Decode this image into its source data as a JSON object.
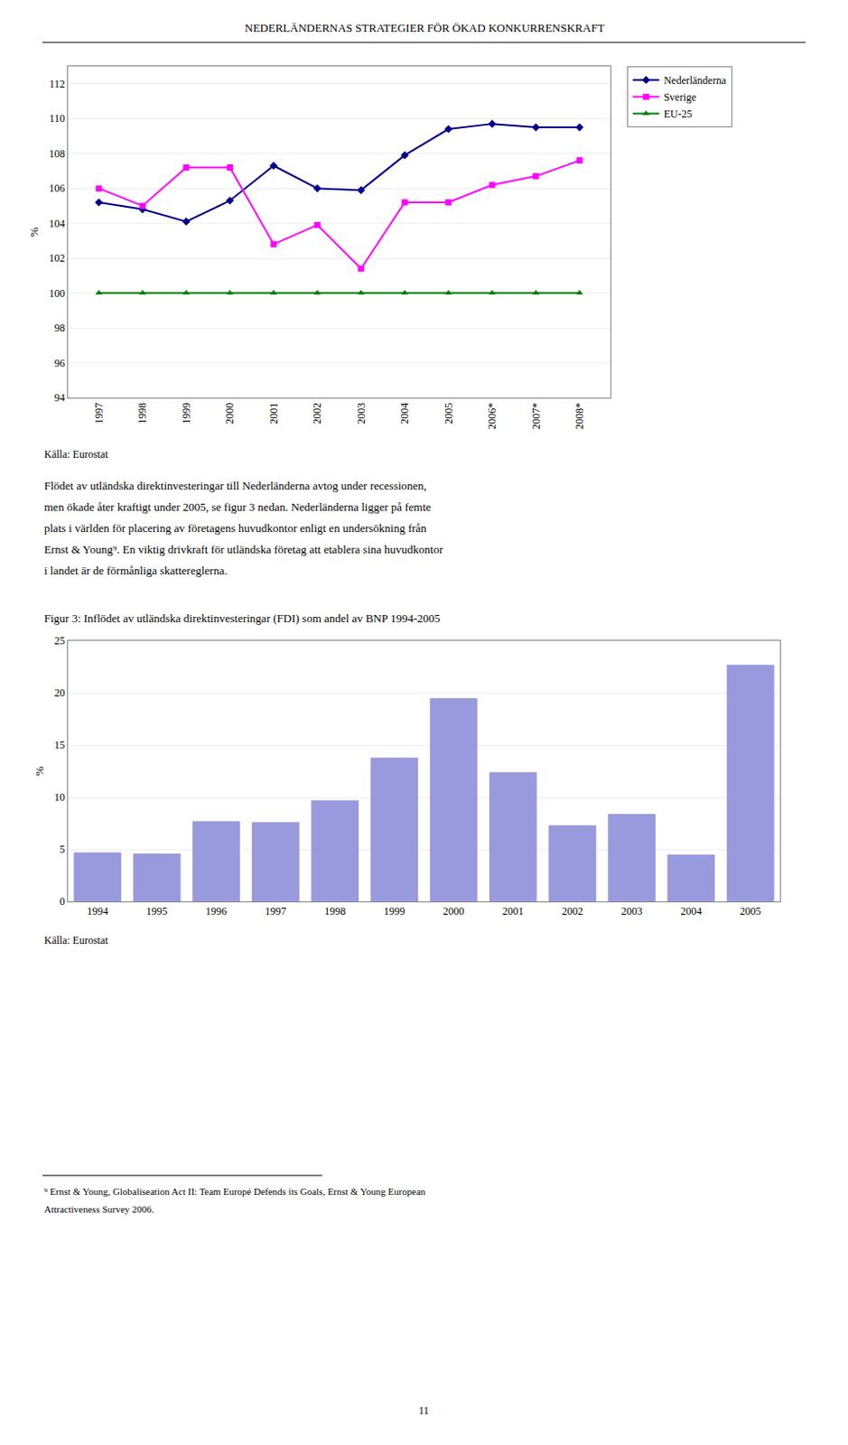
{
  "title": "NEDERLÄNDERNAS STRATEGIER FÖR ÖKAD KONKURRENSKRAFT",
  "chart_data": [
    {
      "type": "line",
      "categories": [
        "1997",
        "1998",
        "1999",
        "2000",
        "2001",
        "2002",
        "2003",
        "2004",
        "2005",
        "2006*",
        "2007*",
        "2008*"
      ],
      "series": [
        {
          "name": "Nederländerna",
          "color": "#00008B",
          "marker": "diamond",
          "values": [
            105.2,
            104.8,
            104.1,
            105.3,
            107.3,
            106.0,
            105.9,
            107.9,
            109.4,
            109.7,
            109.5,
            109.5
          ]
        },
        {
          "name": "Sverige",
          "color": "#FF00FF",
          "marker": "square",
          "values": [
            106.0,
            105.0,
            107.2,
            107.2,
            102.8,
            103.9,
            101.4,
            105.2,
            105.2,
            106.2,
            106.7,
            107.6
          ]
        },
        {
          "name": "EU-25",
          "color": "#008000",
          "marker": "triangle-up",
          "values": [
            100.0,
            100.0,
            100.0,
            100.0,
            100.0,
            100.0,
            100.0,
            100.0,
            100.0,
            100.0,
            100.0,
            100.0
          ]
        }
      ],
      "ylim": [
        94,
        113
      ],
      "yticks": [
        94,
        96,
        98,
        100,
        102,
        104,
        106,
        108,
        110,
        112
      ],
      "ylabel": "%",
      "grid": true,
      "legend": "right",
      "source": "Källa: Eurostat"
    },
    {
      "type": "bar",
      "title": "Figur 3: Inflödet av utländska direktinvesteringar (FDI) som andel av BNP 1994-2005",
      "categories": [
        "1994",
        "1995",
        "1996",
        "1997",
        "1998",
        "1999",
        "2000",
        "2001",
        "2002",
        "2003",
        "2004",
        "2005"
      ],
      "values": [
        4.7,
        4.6,
        7.7,
        7.6,
        9.7,
        13.8,
        19.5,
        12.4,
        7.3,
        8.4,
        4.5,
        22.7
      ],
      "color": "#9999DD",
      "ylim": [
        0,
        25
      ],
      "yticks": [
        0,
        5,
        10,
        15,
        20,
        25
      ],
      "ylabel": "%",
      "grid": true,
      "source": "Källa: Eurostat"
    }
  ],
  "body": [
    "Flödet av utländska direktinvesteringar till Nederländerna avtog under recessionen,",
    "men ökade åter kraftigt under 2005, se figur 3 nedan. Nederländerna ligger på femte",
    "plats i världen för placering av företagens huvudkontor enligt en undersökning från",
    "Ernst & Young⁹. En viktig drivkraft för utländska företag att etablera sina huvudkontor",
    "i landet är de förmånliga skattereglerna."
  ],
  "footnotes": [
    "⁹ Ernst & Young, Globaliseation Act II: Team Europé Defends its Goals, Ernst & Young European",
    "Attractiveness Survey 2006."
  ],
  "page_number": "11"
}
